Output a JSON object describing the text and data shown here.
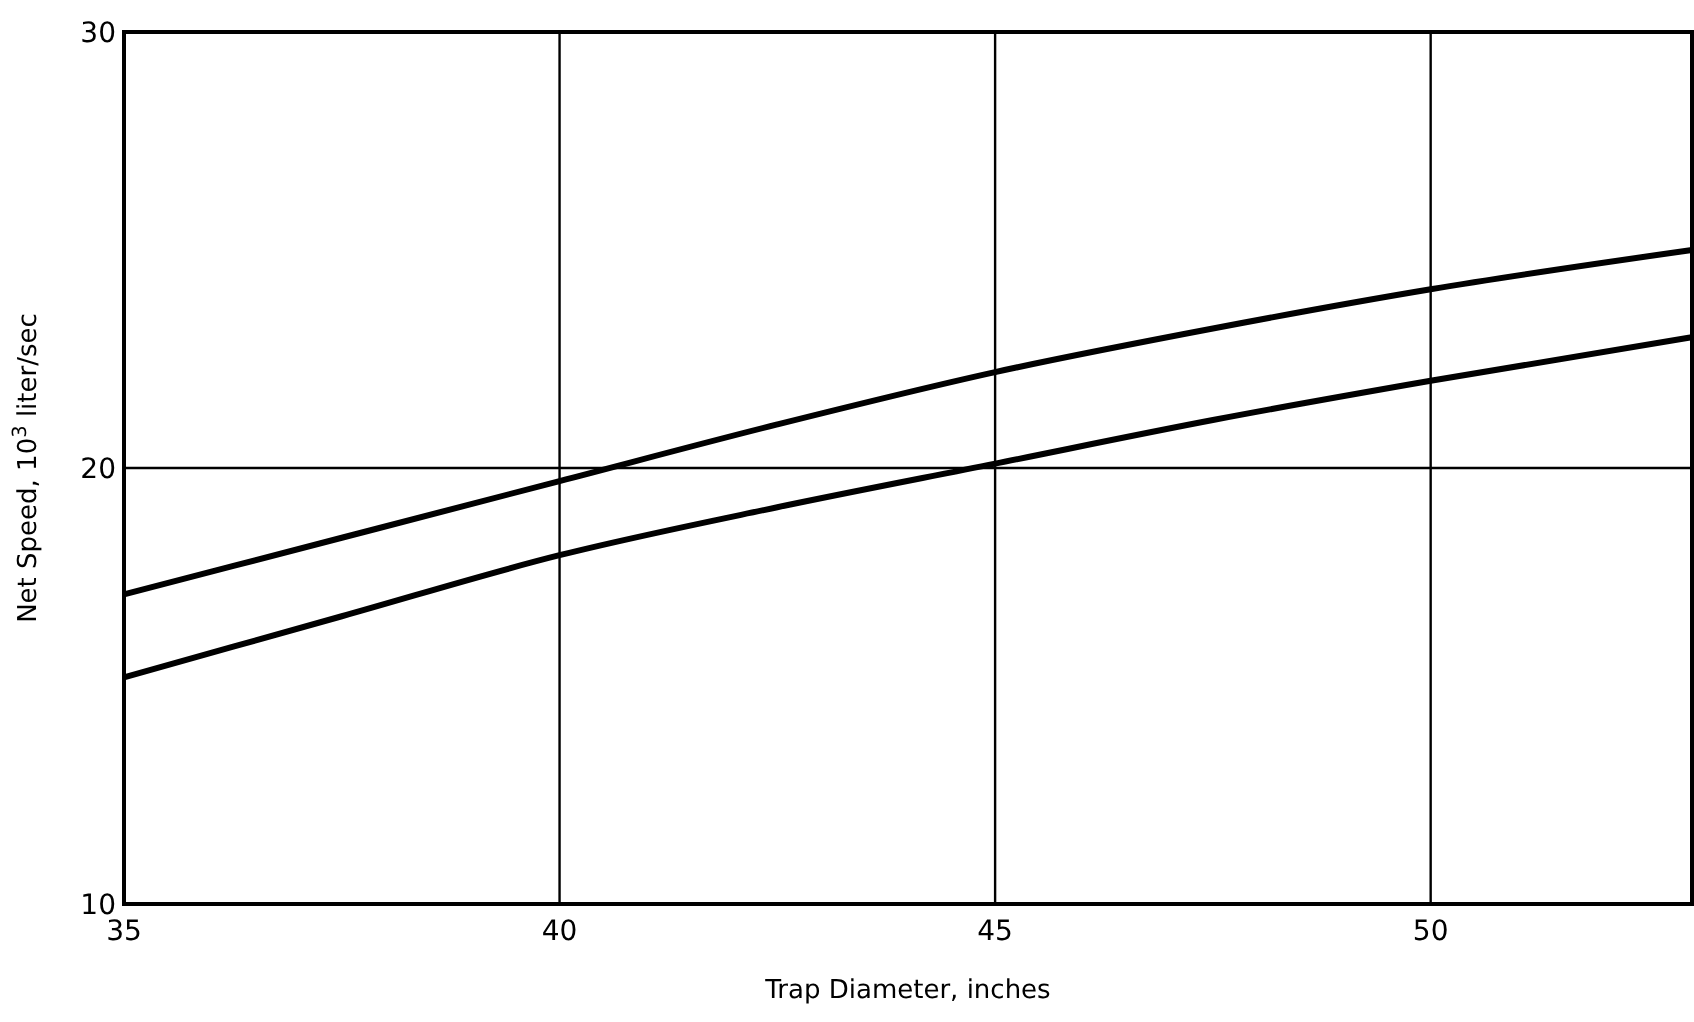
{
  "chart_data": {
    "type": "line",
    "xlabel": "Trap Diameter, inches",
    "ylabel": "Net Speed, 10$^{3}$ liter/sec",
    "x": [
      35,
      37.5,
      40,
      42.5,
      45,
      47.5,
      50,
      53
    ],
    "series": [
      {
        "color": "#000000",
        "values": [
          17.1,
          18.4,
          19.7,
          21.0,
          22.2,
          23.2,
          24.1,
          25.0
        ]
      },
      {
        "color": "#000000",
        "values": [
          15.2,
          16.6,
          18.0,
          19.1,
          20.1,
          21.1,
          22.0,
          23.0
        ]
      }
    ],
    "xlim": [
      35,
      53
    ],
    "ylim": [
      10,
      30
    ],
    "xticks": [
      35,
      40,
      45,
      50
    ],
    "yticks": [
      10,
      20,
      30
    ],
    "grid": true,
    "marker": "none",
    "line_style": "solid"
  }
}
